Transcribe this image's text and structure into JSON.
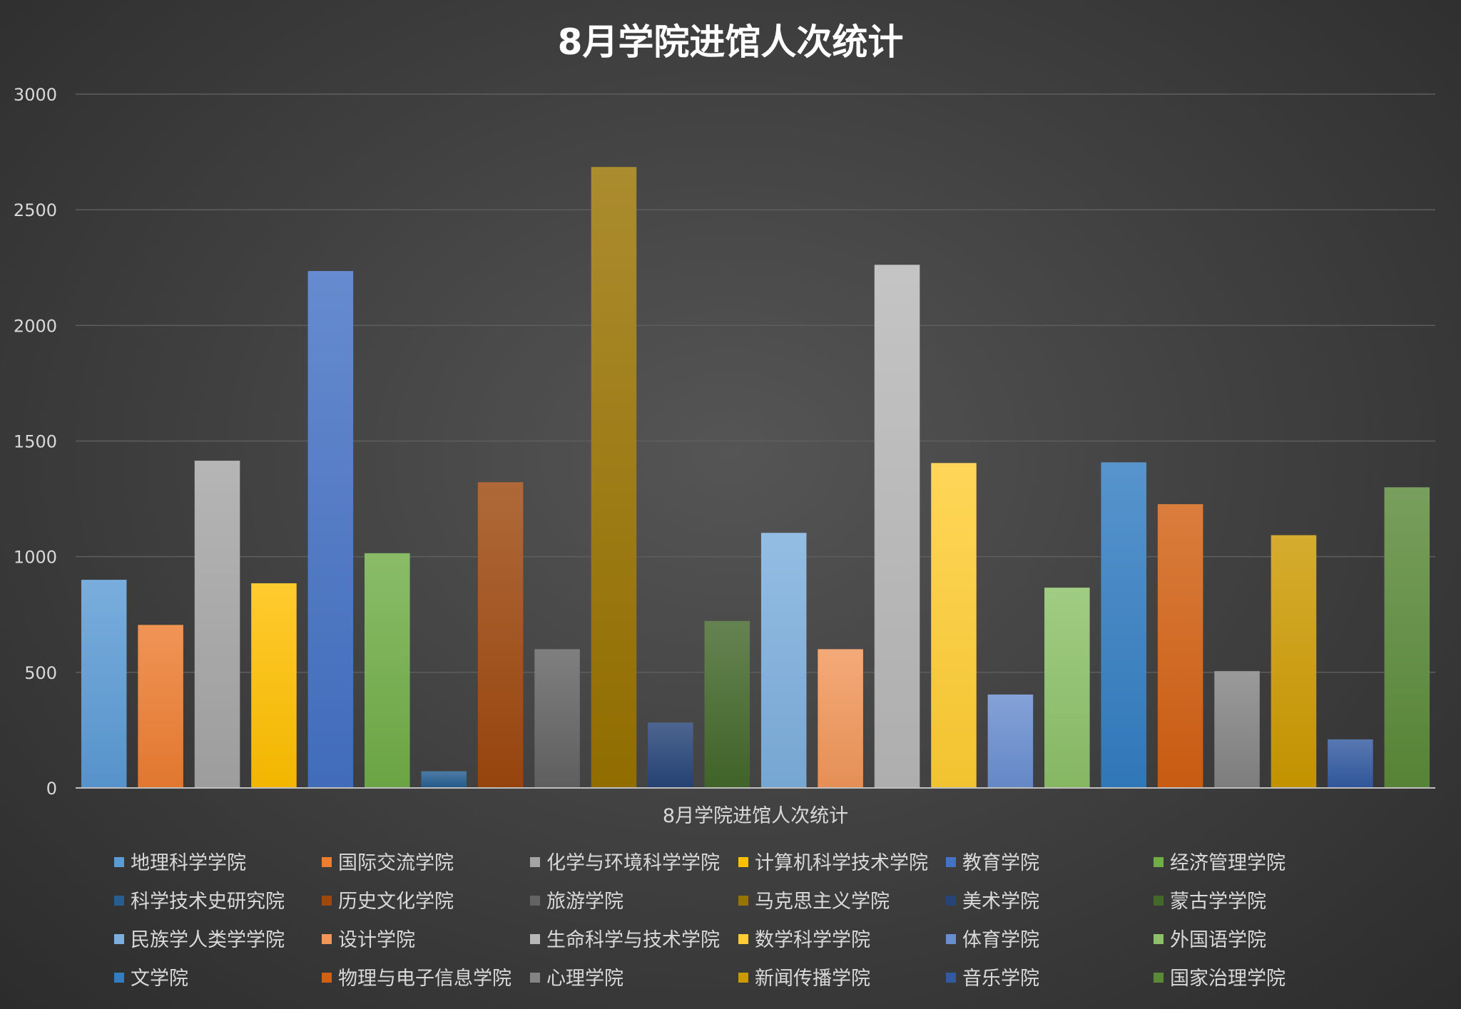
{
  "chart_data": {
    "type": "bar",
    "title": "8月学院进馆人次统计",
    "category_label": "8月学院进馆人次统计",
    "ylim": [
      0,
      3000
    ],
    "yticks": [
      0,
      500,
      1000,
      1500,
      2000,
      2500,
      3000
    ],
    "grid": true,
    "legend_position": "bottom",
    "series": [
      {
        "name": "地理科学学院",
        "value": 900,
        "color": "#5b9bd5"
      },
      {
        "name": "国际交流学院",
        "value": 705,
        "color": "#ed7d31"
      },
      {
        "name": "化学与环境科学学院",
        "value": 1415,
        "color": "#a5a5a5"
      },
      {
        "name": "计算机科学技术学院",
        "value": 885,
        "color": "#ffc000"
      },
      {
        "name": "教育学院",
        "value": 2235,
        "color": "#4472c4"
      },
      {
        "name": "经济管理学院",
        "value": 1015,
        "color": "#70ad47"
      },
      {
        "name": "科学技术史研究院",
        "value": 72,
        "color": "#255e91"
      },
      {
        "name": "历史文化学院",
        "value": 1322,
        "color": "#9e480e"
      },
      {
        "name": "旅游学院",
        "value": 600,
        "color": "#636363"
      },
      {
        "name": "马克思主义学院",
        "value": 2685,
        "color": "#997300"
      },
      {
        "name": "美术学院",
        "value": 283,
        "color": "#264478"
      },
      {
        "name": "蒙古学学院",
        "value": 722,
        "color": "#43682b"
      },
      {
        "name": "民族学人类学学院",
        "value": 1103,
        "color": "#7cafdd"
      },
      {
        "name": "设计学院",
        "value": 600,
        "color": "#f1975a"
      },
      {
        "name": "生命科学与技术学院",
        "value": 2262,
        "color": "#b7b7b7"
      },
      {
        "name": "数学科学学院",
        "value": 1405,
        "color": "#ffcd33"
      },
      {
        "name": "体育学院",
        "value": 404,
        "color": "#698ed0"
      },
      {
        "name": "外国语学院",
        "value": 866,
        "color": "#8cc168"
      },
      {
        "name": "文学院",
        "value": 1408,
        "color": "#327dc2"
      },
      {
        "name": "物理与电子信息学院",
        "value": 1227,
        "color": "#d26012"
      },
      {
        "name": "心理学院",
        "value": 505,
        "color": "#848484"
      },
      {
        "name": "新闻传播学院",
        "value": 1093,
        "color": "#cc9a00"
      },
      {
        "name": "音乐学院",
        "value": 210,
        "color": "#335aa1"
      },
      {
        "name": "国家治理学院",
        "value": 1300,
        "color": "#5a8a39"
      }
    ]
  }
}
